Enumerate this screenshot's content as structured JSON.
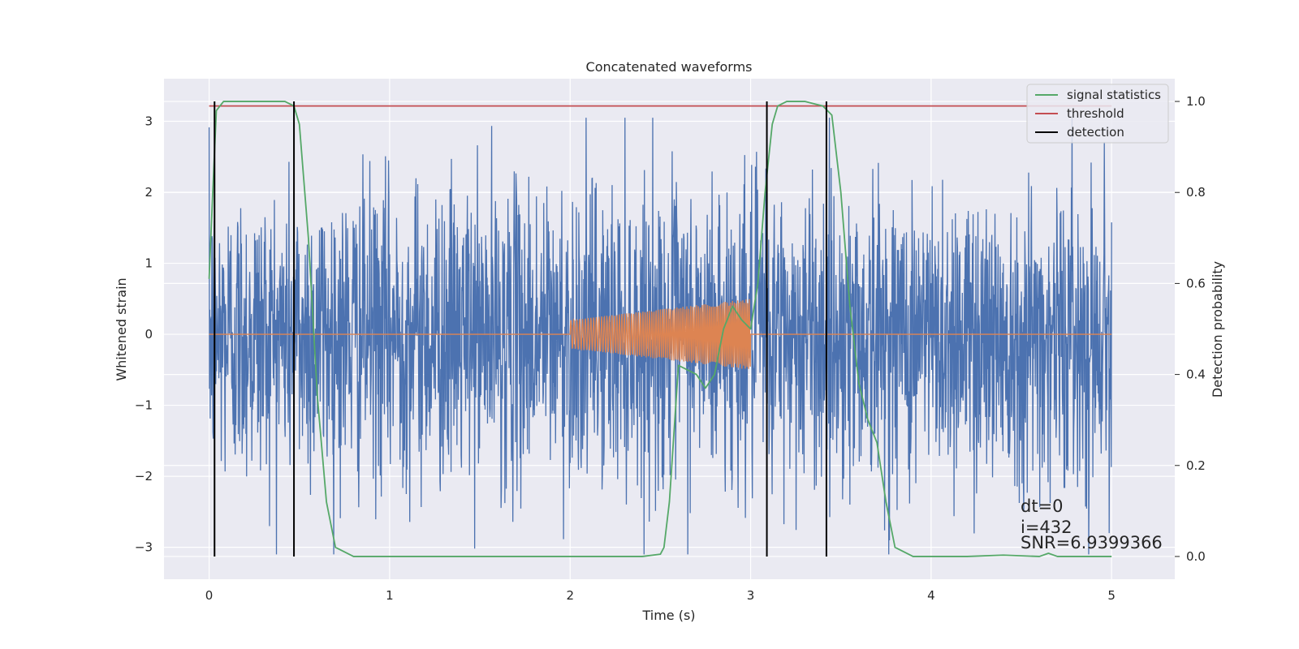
{
  "chart_data": {
    "type": "line",
    "title": "Concatenated waveforms",
    "xlabel": "Time (s)",
    "ylabel": "Whitened strain",
    "y2label": "Detection probability",
    "xlim": [
      -0.25,
      5.35
    ],
    "ylim": [
      -3.45,
      3.6
    ],
    "y2lim": [
      -0.05,
      1.05
    ],
    "x_ticks": [
      0,
      1,
      2,
      3,
      4,
      5
    ],
    "y_ticks": [
      -3,
      -2,
      -1,
      0,
      1,
      2,
      3
    ],
    "y2_ticks": [
      0.0,
      0.2,
      0.4,
      0.6,
      0.8,
      1.0
    ],
    "grid": true,
    "legend_position": "top-right",
    "series": [
      {
        "name": "signal statistics",
        "axis": "right",
        "color": "#55a868",
        "x": [
          0.0,
          0.02,
          0.04,
          0.08,
          0.15,
          0.3,
          0.42,
          0.47,
          0.5,
          0.55,
          0.6,
          0.65,
          0.7,
          0.8,
          1.0,
          1.5,
          2.0,
          2.4,
          2.5,
          2.52,
          2.55,
          2.58,
          2.6,
          2.65,
          2.7,
          2.75,
          2.8,
          2.85,
          2.9,
          2.95,
          3.0,
          3.04,
          3.08,
          3.12,
          3.15,
          3.2,
          3.3,
          3.4,
          3.45,
          3.5,
          3.55,
          3.6,
          3.65,
          3.7,
          3.75,
          3.8,
          3.9,
          4.0,
          4.2,
          4.4,
          4.6,
          4.65,
          4.7,
          4.8,
          5.0
        ],
        "y": [
          0.61,
          0.8,
          0.98,
          1.0,
          1.0,
          1.0,
          1.0,
          0.99,
          0.95,
          0.7,
          0.35,
          0.12,
          0.02,
          0.0,
          0.0,
          0.0,
          0.0,
          0.0,
          0.005,
          0.02,
          0.12,
          0.3,
          0.42,
          0.41,
          0.4,
          0.37,
          0.4,
          0.5,
          0.55,
          0.52,
          0.5,
          0.6,
          0.8,
          0.95,
          0.99,
          1.0,
          1.0,
          0.99,
          0.97,
          0.8,
          0.55,
          0.38,
          0.3,
          0.25,
          0.12,
          0.02,
          0.0,
          0.0,
          0.0,
          0.003,
          0.0,
          0.007,
          0.0,
          0.0,
          0.0
        ]
      },
      {
        "name": "threshold",
        "axis": "right",
        "color": "#c44e52",
        "x": [
          0.0,
          5.0
        ],
        "y": [
          0.99,
          0.99
        ]
      },
      {
        "name": "detection",
        "axis": "right",
        "color": "#000000",
        "vlines_x": [
          0.03,
          0.47,
          3.09,
          3.42
        ],
        "ymin": 0.0,
        "ymax": 1.0
      }
    ],
    "unlabeled_series": [
      {
        "axis": "left",
        "color": "#4c72b0",
        "x_range": [
          0.0,
          5.0
        ],
        "approx_amplitude": 2.3,
        "note_noise": true
      },
      {
        "axis": "left",
        "color": "#dd8452",
        "x_range": [
          0.0,
          5.0
        ],
        "chirp_start": 2.0,
        "chirp_end": 3.0,
        "chirp_amplitude_start": 0.2,
        "chirp_amplitude_end": 0.5
      }
    ],
    "annotations": [
      "dt=0",
      "i=432",
      "SNR=6.9399366"
    ]
  }
}
